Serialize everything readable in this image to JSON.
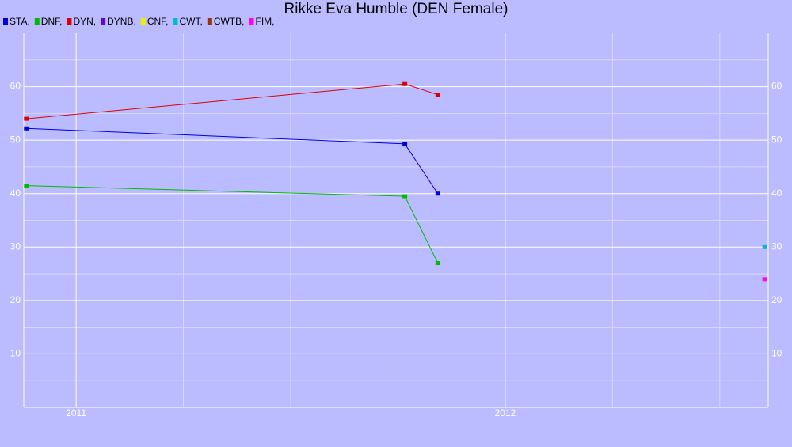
{
  "chart_data": {
    "type": "line",
    "title": "Rikke Eva Humble (DEN Female)",
    "xlim": [
      2010.878,
      2012.613
    ],
    "xticks": [
      2011,
      2012
    ],
    "xminor": [
      2011.25,
      2011.5,
      2011.75,
      2012.25,
      2012.5
    ],
    "ylim": [
      0,
      70
    ],
    "yticks": [
      10,
      20,
      30,
      40,
      50,
      60
    ],
    "yminor": [
      5,
      15,
      25,
      35,
      45,
      55,
      65
    ],
    "grid": true,
    "legend": "top-left",
    "series": [
      {
        "name": "STA,",
        "color": "#0000dd",
        "x": [
          2010.884,
          2011.766,
          2011.843
        ],
        "values": [
          52.2,
          49.3,
          40
        ]
      },
      {
        "name": "DNF,",
        "color": "#00bb00",
        "x": [
          2010.884,
          2011.766,
          2011.843
        ],
        "values": [
          41.5,
          39.5,
          27
        ]
      },
      {
        "name": "DYN,",
        "color": "#dd0000",
        "x": [
          2010.884,
          2011.766,
          2011.843
        ],
        "values": [
          54,
          60.5,
          58.5
        ]
      },
      {
        "name": "DYNB,",
        "color": "#6600dd",
        "x": [],
        "values": []
      },
      {
        "name": "CNF,",
        "color": "#eeee00",
        "x": [],
        "values": []
      },
      {
        "name": "CWT,",
        "color": "#00bbcc",
        "x": [
          2012.605
        ],
        "values": [
          30
        ]
      },
      {
        "name": "CWTB,",
        "color": "#993300",
        "x": [],
        "values": []
      },
      {
        "name": "FIM,",
        "color": "#ff00ff",
        "x": [
          2012.605
        ],
        "values": [
          24
        ]
      }
    ]
  }
}
